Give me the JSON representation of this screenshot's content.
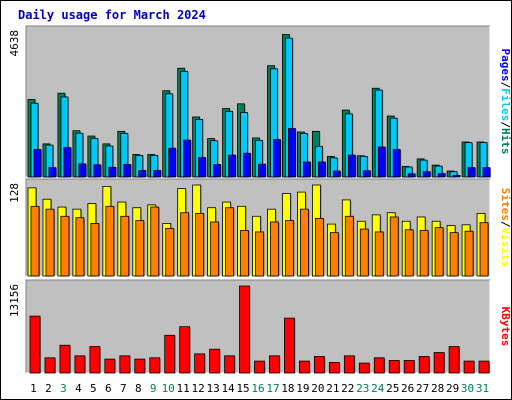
{
  "chart_data": {
    "type": "bar",
    "title": "Daily usage for March 2024",
    "categories": [
      "1",
      "2",
      "3",
      "4",
      "5",
      "6",
      "7",
      "8",
      "9",
      "10",
      "11",
      "12",
      "13",
      "14",
      "15",
      "16",
      "17",
      "18",
      "19",
      "20",
      "21",
      "22",
      "23",
      "24",
      "25",
      "26",
      "27",
      "28",
      "29",
      "30",
      "31"
    ],
    "weekend_days": [
      "3",
      "9",
      "10",
      "16",
      "17",
      "23",
      "24",
      "30",
      "31"
    ],
    "panels": [
      {
        "name": "hits-files-pages",
        "max_label": "4638",
        "ymax": 4638,
        "legend": [
          "Pages",
          "Files",
          "Hits"
        ],
        "series": [
          {
            "name": "Hits",
            "color": "#00805c",
            "values": [
              2480,
              1060,
              2680,
              1480,
              1310,
              1060,
              1460,
              720,
              720,
              2760,
              3480,
              1920,
              1230,
              2190,
              2340,
              1250,
              3560,
              4560,
              1440,
              1460,
              660,
              2140,
              680,
              2840,
              1950,
              340,
              580,
              380,
              190,
              1120,
              1120
            ]
          },
          {
            "name": "Files",
            "color": "#00c8f8",
            "values": [
              2360,
              1020,
              2560,
              1400,
              1230,
              990,
              1390,
              690,
              690,
              2660,
              3380,
              1840,
              1160,
              2100,
              2060,
              1170,
              3460,
              4440,
              1390,
              980,
              610,
              2020,
              660,
              2780,
              1880,
              320,
              540,
              350,
              170,
              1100,
              1100
            ]
          },
          {
            "name": "Pages",
            "color": "#0000ff",
            "values": [
              880,
              300,
              940,
              420,
              390,
              310,
              400,
              210,
              210,
              920,
              1180,
              620,
              400,
              700,
              760,
              410,
              1200,
              1550,
              480,
              480,
              190,
              700,
              200,
              960,
              880,
              100,
              170,
              110,
              50,
              300,
              300
            ]
          }
        ]
      },
      {
        "name": "visits-sites",
        "max_label": "128",
        "ymax": 128,
        "legend": [
          "Sites",
          "Visits"
        ],
        "series": [
          {
            "name": "Visits",
            "color": "#ffff00",
            "values": [
              124,
              108,
              97,
              94,
              102,
              126,
              104,
              96,
              100,
              74,
              123,
              128,
              96,
              104,
              98,
              84,
              94,
              116,
              118,
              128,
              73,
              107,
              77,
              86,
              89,
              77,
              83,
              77,
              71,
              72,
              88
            ]
          },
          {
            "name": "Sites",
            "color": "#ff8000",
            "values": [
              98,
              94,
              84,
              82,
              74,
              98,
              84,
              78,
              97,
              67,
              89,
              88,
              76,
              96,
              64,
              62,
              76,
              78,
              94,
              81,
              61,
              84,
              66,
              62,
              83,
              65,
              64,
              68,
              61,
              63,
              75
            ]
          }
        ]
      },
      {
        "name": "kbytes",
        "max_label": "13156",
        "ymax": 13156,
        "legend": [
          "KBytes"
        ],
        "series": [
          {
            "name": "KBytes",
            "color": "#ff0000",
            "values": [
              8600,
              2300,
              4200,
              2600,
              4000,
              2100,
              2600,
              2100,
              2300,
              5700,
              7000,
              2900,
              3600,
              2600,
              13156,
              1800,
              2600,
              8300,
              1800,
              2500,
              1600,
              2600,
              1500,
              2300,
              1900,
              1900,
              2500,
              3100,
              4000,
              1800,
              1800
            ]
          }
        ]
      }
    ]
  }
}
